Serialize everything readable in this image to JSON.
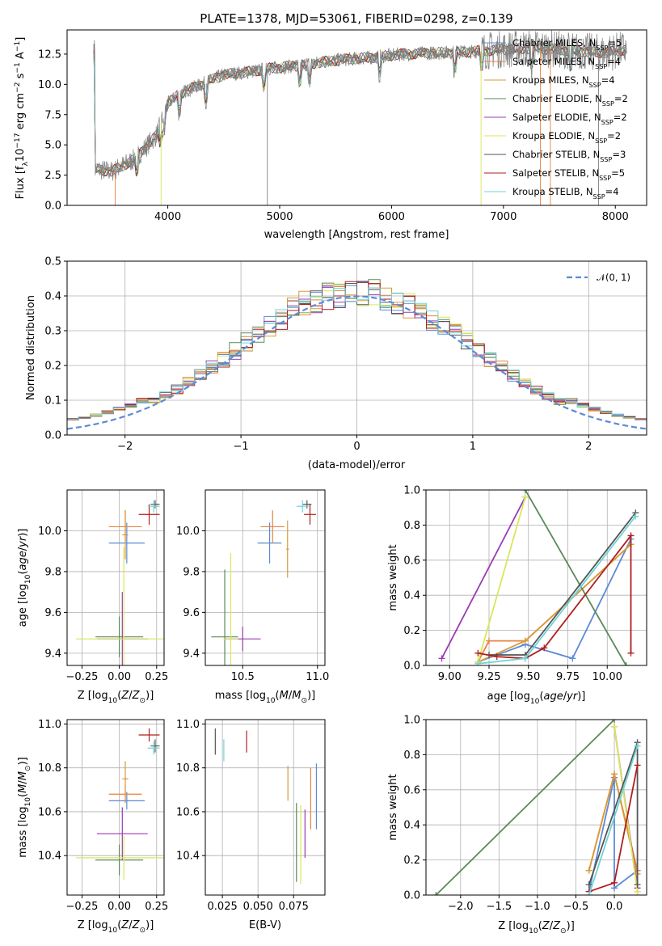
{
  "figure_title": "PLATE=1378, MJD=53061, FIBERID=0298, z=0.139",
  "colors": {
    "Chabrier MILES": "#5b8ad6",
    "Salpeter MILES": "#e9823d",
    "Kroupa MILES": "#d99a3a",
    "Chabrier ELODIE": "#5a8a5a",
    "Salpeter ELODIE": "#9b3bb5",
    "Kroupa ELODIE": "#d9e65a",
    "Chabrier STELIB": "#555555",
    "Salpeter STELIB": "#b01e1e",
    "Kroupa STELIB": "#6fd3d8",
    "spectrum": "#808080",
    "normal": "#5b8ad6"
  },
  "chart_data": [
    {
      "type": "line",
      "title": "PLATE=1378, MJD=53061, FIBERID=0298, z=0.139",
      "xlabel": "wavelength [Angstrom, rest frame]",
      "ylabel": "Flux [fλ10⁻¹⁷ erg cm⁻² s⁻¹ A⁻¹]",
      "xlim": [
        3100,
        8280
      ],
      "ylim": [
        0,
        14.5
      ],
      "xticks": [
        4000,
        5000,
        6000,
        7000,
        8000
      ],
      "yticks": [
        0.0,
        2.5,
        5.0,
        7.5,
        10.0,
        12.5
      ],
      "grid": false,
      "legend_position": "right",
      "series": [
        {
          "name": "Chabrier MILES, N_SSP=5"
        },
        {
          "name": "Salpeter MILES, N_SSP=4"
        },
        {
          "name": "Kroupa MILES, N_SSP=4"
        },
        {
          "name": "Chabrier ELODIE, N_SSP=2"
        },
        {
          "name": "Salpeter ELODIE, N_SSP=2"
        },
        {
          "name": "Kroupa ELODIE, N_SSP=2"
        },
        {
          "name": "Chabrier STELIB, N_SSP=3"
        },
        {
          "name": "Salpeter STELIB, N_SSP=5"
        },
        {
          "name": "Kroupa STELIB, N_SSP=4"
        }
      ],
      "continuum": {
        "x": [
          3350,
          3500,
          3700,
          3900,
          4000,
          4100,
          4300,
          4500,
          4700,
          4900,
          5200,
          5500,
          5800,
          6100,
          6400,
          6700,
          7000,
          7300,
          7600,
          7900,
          8100
        ],
        "y": [
          3.0,
          2.8,
          3.8,
          5.8,
          8.4,
          9.2,
          10.0,
          10.8,
          11.0,
          11.3,
          11.6,
          12.0,
          12.2,
          12.5,
          12.6,
          12.7,
          12.9,
          13.0,
          12.8,
          12.6,
          12.9
        ]
      }
    },
    {
      "type": "histogram",
      "xlabel": "(data-model)/error",
      "ylabel": "Normed distribution",
      "xlim": [
        -2.5,
        2.5
      ],
      "ylim": [
        0,
        0.5
      ],
      "xticks": [
        -2,
        -1,
        0,
        1,
        2
      ],
      "yticks": [
        0.0,
        0.1,
        0.2,
        0.3,
        0.4,
        0.5
      ],
      "grid": true,
      "legend": "𝒩(0, 1)",
      "legend_position": "top-right"
    },
    {
      "type": "scatter",
      "xlabel": "Z [log10(Z/Z⊙)]",
      "ylabel": "age  [log10(age/yr)]",
      "xlim": [
        -0.35,
        0.3
      ],
      "ylim": [
        9.34,
        10.2
      ],
      "xticks": [
        -0.25,
        0.0,
        0.25
      ],
      "yticks": [
        9.4,
        9.6,
        9.8,
        10.0
      ],
      "points": [
        {
          "s": "Chabrier MILES",
          "x": 0.05,
          "y": 9.94,
          "xerr": 0.12,
          "yerr": 0.1
        },
        {
          "s": "Salpeter MILES",
          "x": 0.04,
          "y": 10.02,
          "xerr": 0.11,
          "yerr": 0.08
        },
        {
          "s": "Chabrier ELODIE",
          "x": 0.0,
          "y": 9.48,
          "xerr": 0.16,
          "yerr": 0.1
        },
        {
          "s": "Salpeter ELODIE",
          "x": 0.02,
          "y": 9.47,
          "xerr": 0.17,
          "yerr": 0.23
        },
        {
          "s": "Kroupa ELODIE",
          "x": 0.03,
          "y": 9.47,
          "xerr": 0.32,
          "yerr": 0.45
        },
        {
          "s": "Chabrier STELIB",
          "x": 0.24,
          "y": 10.13,
          "xerr": 0.03,
          "yerr": 0.02
        },
        {
          "s": "Salpeter STELIB",
          "x": 0.2,
          "y": 10.08,
          "xerr": 0.07,
          "yerr": 0.05
        },
        {
          "s": "Kroupa STELIB",
          "x": 0.23,
          "y": 10.12,
          "xerr": 0.04,
          "yerr": 0.03
        },
        {
          "s": "Kroupa MILES",
          "x": 0.04,
          "y": 9.98,
          "xerr": 0.02,
          "yerr": 0.12
        }
      ]
    },
    {
      "type": "scatter",
      "xlabel": "mass [log10(M/M⊙)]",
      "ylabel": "",
      "xlim": [
        10.25,
        11.05
      ],
      "ylim": [
        9.34,
        10.2
      ],
      "xticks": [
        10.5,
        11.0
      ],
      "yticks": [
        9.4,
        9.6,
        9.8,
        10.0
      ],
      "points": [
        {
          "s": "Chabrier MILES",
          "x": 10.68,
          "y": 9.94,
          "xerr": 0.08,
          "yerr": 0.1
        },
        {
          "s": "Salpeter MILES",
          "x": 10.7,
          "y": 10.02,
          "xerr": 0.08,
          "yerr": 0.08
        },
        {
          "s": "Chabrier ELODIE",
          "x": 10.38,
          "y": 9.48,
          "xerr": 0.09,
          "yerr": 0.33
        },
        {
          "s": "Salpeter ELODIE",
          "x": 10.5,
          "y": 9.47,
          "xerr": 0.12,
          "yerr": 0.06
        },
        {
          "s": "Kroupa ELODIE",
          "x": 10.42,
          "y": 9.47,
          "xerr": 0.05,
          "yerr": 0.42
        },
        {
          "s": "Chabrier STELIB",
          "x": 10.93,
          "y": 10.13,
          "xerr": 0.03,
          "yerr": 0.02
        },
        {
          "s": "Salpeter STELIB",
          "x": 10.95,
          "y": 10.08,
          "xerr": 0.04,
          "yerr": 0.05
        },
        {
          "s": "Kroupa STELIB",
          "x": 10.9,
          "y": 10.12,
          "xerr": 0.04,
          "yerr": 0.03
        },
        {
          "s": "Kroupa MILES",
          "x": 10.8,
          "y": 9.91,
          "xerr": 0.01,
          "yerr": 0.14
        }
      ]
    },
    {
      "type": "line",
      "xlabel": "age  [log10(age/yr)]",
      "ylabel": "mass weight",
      "xlim": [
        8.85,
        10.25
      ],
      "ylim": [
        0,
        1.0
      ],
      "xticks": [
        9.0,
        9.25,
        9.5,
        9.75,
        10.0
      ],
      "yticks": [
        0.0,
        0.2,
        0.4,
        0.6,
        0.8,
        1.0
      ],
      "grid": true,
      "series": [
        {
          "s": "Chabrier MILES",
          "x": [
            9.18,
            9.48,
            9.78,
            10.15
          ],
          "y": [
            0.02,
            0.12,
            0.04,
            0.72
          ]
        },
        {
          "s": "Salpeter MILES",
          "x": [
            9.18,
            9.25,
            9.48,
            10.15
          ],
          "y": [
            0.02,
            0.14,
            0.14,
            0.69
          ]
        },
        {
          "s": "Kroupa MILES",
          "x": [
            9.18,
            9.48,
            10.15
          ],
          "y": [
            0.02,
            0.14,
            0.69
          ]
        },
        {
          "s": "Chabrier ELODIE",
          "x": [
            9.48,
            10.12
          ],
          "y": [
            1.0,
            0.0
          ]
        },
        {
          "s": "Salpeter ELODIE",
          "x": [
            8.95,
            9.48
          ],
          "y": [
            0.04,
            0.96
          ]
        },
        {
          "s": "Kroupa ELODIE",
          "x": [
            9.18,
            9.48
          ],
          "y": [
            0.02,
            0.96
          ]
        },
        {
          "s": "Chabrier STELIB",
          "x": [
            9.25,
            9.48,
            10.18
          ],
          "y": [
            0.06,
            0.06,
            0.87
          ]
        },
        {
          "s": "Salpeter STELIB",
          "x": [
            9.18,
            9.3,
            9.48,
            9.6,
            10.15,
            10.15
          ],
          "y": [
            0.07,
            0.05,
            0.04,
            0.1,
            0.74,
            0.07
          ]
        },
        {
          "s": "Kroupa STELIB",
          "x": [
            9.18,
            9.48,
            10.18
          ],
          "y": [
            0.01,
            0.04,
            0.85
          ]
        }
      ]
    },
    {
      "type": "scatter",
      "xlabel": "Z [log10(Z/Z⊙)]",
      "ylabel": "mass [log10(M/M⊙)]",
      "xlim": [
        -0.35,
        0.3
      ],
      "ylim": [
        10.22,
        11.02
      ],
      "xticks": [
        -0.25,
        0.0,
        0.25
      ],
      "yticks": [
        10.4,
        10.6,
        10.8,
        11.0
      ],
      "points": [
        {
          "s": "Chabrier MILES",
          "x": 0.05,
          "y": 10.65,
          "xerr": 0.12,
          "yerr": 0.04
        },
        {
          "s": "Salpeter MILES",
          "x": 0.04,
          "y": 10.68,
          "xerr": 0.11,
          "yerr": 0.04
        },
        {
          "s": "Chabrier ELODIE",
          "x": 0.0,
          "y": 10.38,
          "xerr": 0.16,
          "yerr": 0.07
        },
        {
          "s": "Salpeter ELODIE",
          "x": 0.02,
          "y": 10.5,
          "xerr": 0.17,
          "yerr": 0.12
        },
        {
          "s": "Kroupa ELODIE",
          "x": 0.03,
          "y": 10.39,
          "xerr": 0.32,
          "yerr": 0.1
        },
        {
          "s": "Chabrier STELIB",
          "x": 0.24,
          "y": 10.9,
          "xerr": 0.03,
          "yerr": 0.03
        },
        {
          "s": "Salpeter STELIB",
          "x": 0.2,
          "y": 10.95,
          "xerr": 0.07,
          "yerr": 0.03
        },
        {
          "s": "Kroupa STELIB",
          "x": 0.23,
          "y": 10.89,
          "xerr": 0.04,
          "yerr": 0.03
        },
        {
          "s": "Kroupa MILES",
          "x": 0.04,
          "y": 10.75,
          "xerr": 0.02,
          "yerr": 0.08
        }
      ]
    },
    {
      "type": "scatter",
      "xlabel": "E(B-V)",
      "ylabel": "",
      "xlim": [
        0.013,
        0.097
      ],
      "ylim": [
        10.22,
        11.02
      ],
      "xticks": [
        0.025,
        0.05,
        0.075
      ],
      "xticklabels": [
        "0.025",
        "0.050",
        "0.075"
      ],
      "yticks": [
        10.4,
        10.6,
        10.8,
        11.0
      ],
      "points": [
        {
          "s": "Chabrier MILES",
          "x": 0.091,
          "y": 10.67,
          "xerr": 0.0,
          "yerr": 0.15
        },
        {
          "s": "Salpeter MILES",
          "x": 0.087,
          "y": 10.66,
          "xerr": 0.0,
          "yerr": 0.14
        },
        {
          "s": "Chabrier ELODIE",
          "x": 0.077,
          "y": 10.46,
          "xerr": 0.0,
          "yerr": 0.18
        },
        {
          "s": "Salpeter ELODIE",
          "x": 0.083,
          "y": 10.5,
          "xerr": 0.0,
          "yerr": 0.11
        },
        {
          "s": "Kroupa ELODIE",
          "x": 0.08,
          "y": 10.45,
          "xerr": 0.0,
          "yerr": 0.18
        },
        {
          "s": "Chabrier STELIB",
          "x": 0.02,
          "y": 10.92,
          "xerr": 0.0,
          "yerr": 0.06
        },
        {
          "s": "Salpeter STELIB",
          "x": 0.042,
          "y": 10.92,
          "xerr": 0.0,
          "yerr": 0.05
        },
        {
          "s": "Kroupa STELIB",
          "x": 0.026,
          "y": 10.88,
          "xerr": 0.0,
          "yerr": 0.05
        },
        {
          "s": "Kroupa MILES",
          "x": 0.071,
          "y": 10.73,
          "xerr": 0.0,
          "yerr": 0.08
        }
      ]
    },
    {
      "type": "line",
      "xlabel": "Z [log10(Z/Z⊙)]",
      "ylabel": "mass weight",
      "xlim": [
        -2.45,
        0.42
      ],
      "ylim": [
        0,
        1.0
      ],
      "xticks": [
        -2.0,
        -1.5,
        -1.0,
        -0.5,
        0.0
      ],
      "yticks": [
        0.0,
        0.2,
        0.4,
        0.6,
        0.8,
        1.0
      ],
      "grid": true,
      "series": [
        {
          "s": "Chabrier MILES",
          "x": [
            -0.33,
            0.0,
            0.0,
            0.3
          ],
          "y": [
            0.02,
            0.67,
            0.04,
            0.14
          ]
        },
        {
          "s": "Salpeter MILES",
          "x": [
            -0.33,
            0.0,
            0.3,
            0.3
          ],
          "y": [
            0.14,
            0.69,
            0.14,
            0.02
          ]
        },
        {
          "s": "Kroupa MILES",
          "x": [
            -0.33,
            0.0,
            0.3
          ],
          "y": [
            0.14,
            0.69,
            0.12
          ]
        },
        {
          "s": "Chabrier ELODIE",
          "x": [
            -2.32,
            0.0
          ],
          "y": [
            0.0,
            1.0
          ]
        },
        {
          "s": "Salpeter ELODIE",
          "x": [
            0.0,
            0.3
          ],
          "y": [
            0.96,
            0.04
          ]
        },
        {
          "s": "Kroupa ELODIE",
          "x": [
            0.0,
            0.3
          ],
          "y": [
            0.96,
            0.02
          ]
        },
        {
          "s": "Chabrier STELIB",
          "x": [
            -0.33,
            0.3,
            0.3
          ],
          "y": [
            0.06,
            0.87,
            0.06
          ]
        },
        {
          "s": "Salpeter STELIB",
          "x": [
            -0.33,
            0.0,
            0.3
          ],
          "y": [
            0.02,
            0.07,
            0.74
          ]
        },
        {
          "s": "Kroupa STELIB",
          "x": [
            -0.33,
            0.3
          ],
          "y": [
            0.0,
            0.85
          ]
        }
      ]
    }
  ]
}
